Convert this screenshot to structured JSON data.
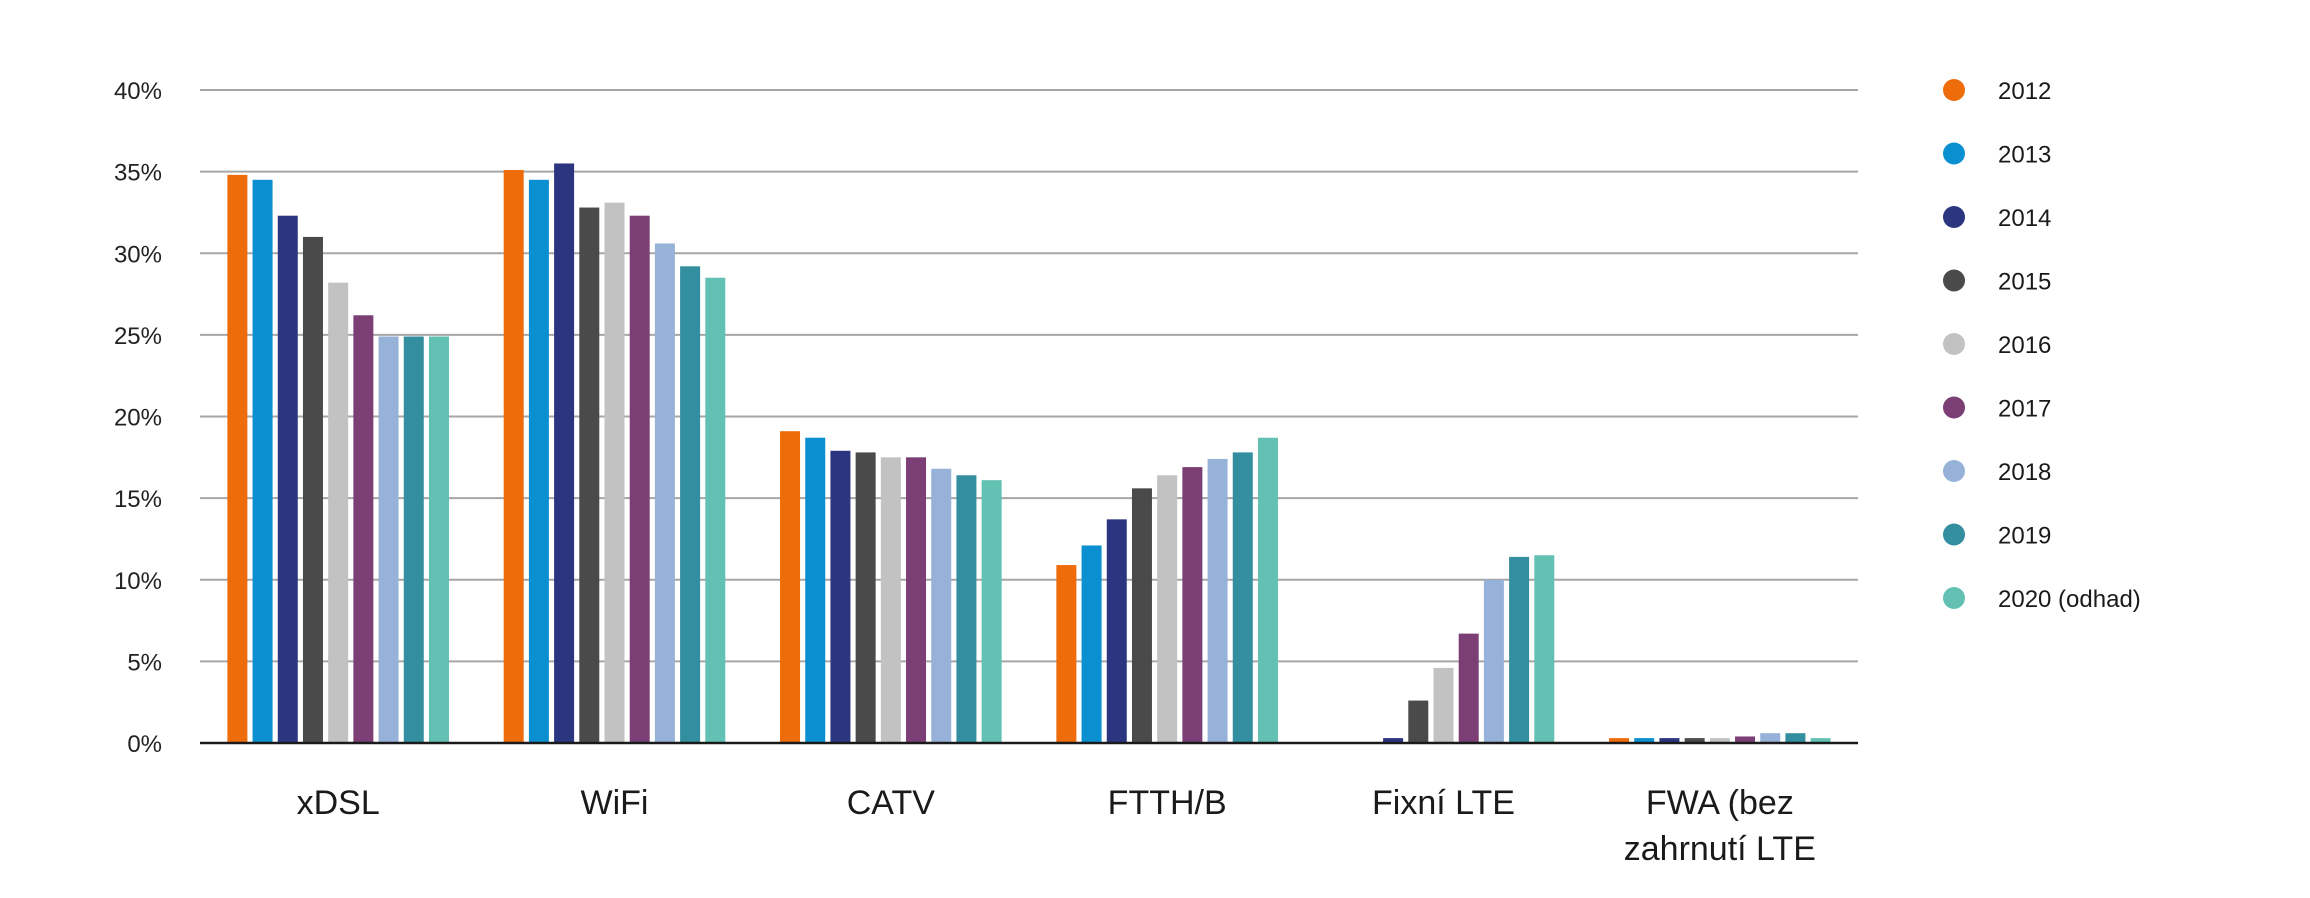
{
  "chart_data": {
    "type": "bar",
    "title": "",
    "xlabel": "",
    "ylabel": "",
    "ylim": [
      0,
      40
    ],
    "y_ticks": [
      "0%",
      "5%",
      "10%",
      "15%",
      "20%",
      "25%",
      "30%",
      "35%",
      "40%"
    ],
    "y_tick_values": [
      0,
      5,
      10,
      15,
      20,
      25,
      30,
      35,
      40
    ],
    "grid": true,
    "legend_position": "right",
    "categories": [
      "xDSL",
      "WiFi",
      "CATV",
      "FTTH/B",
      "Fixní LTE",
      "FWA (bez zahrnutí LTE"
    ],
    "series": [
      {
        "name": "2012",
        "color": "#ee6c0a",
        "values": [
          34.8,
          35.1,
          19.1,
          10.9,
          0,
          0.3
        ]
      },
      {
        "name": "2013",
        "color": "#0a8fd0",
        "values": [
          34.5,
          34.5,
          18.7,
          12.1,
          0,
          0.3
        ]
      },
      {
        "name": "2014",
        "color": "#2b3580",
        "values": [
          32.3,
          35.5,
          17.9,
          13.7,
          0.3,
          0.3
        ]
      },
      {
        "name": "2015",
        "color": "#4a4a4a",
        "values": [
          31.0,
          32.8,
          17.8,
          15.6,
          2.6,
          0.3
        ]
      },
      {
        "name": "2016",
        "color": "#c2c2c2",
        "values": [
          28.2,
          33.1,
          17.5,
          16.4,
          4.6,
          0.3
        ]
      },
      {
        "name": "2017",
        "color": "#7b3f75",
        "values": [
          26.2,
          32.3,
          17.5,
          16.9,
          6.7,
          0.4
        ]
      },
      {
        "name": "2018",
        "color": "#97b2d8",
        "values": [
          24.9,
          30.6,
          16.8,
          17.4,
          10.0,
          0.6
        ]
      },
      {
        "name": "2019",
        "color": "#338e9f",
        "values": [
          24.9,
          29.2,
          16.4,
          17.8,
          11.4,
          0.6
        ]
      },
      {
        "name": "2020 (odhad)",
        "color": "#62c1b3",
        "values": [
          24.9,
          28.5,
          16.1,
          18.7,
          11.5,
          0.3
        ]
      }
    ]
  }
}
